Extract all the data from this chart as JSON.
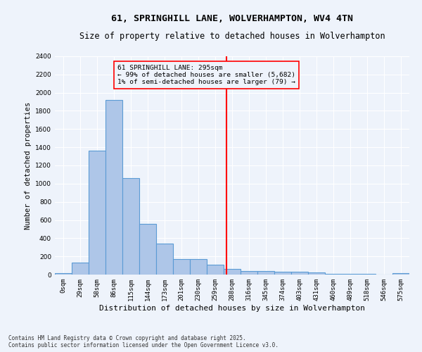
{
  "title_line1": "61, SPRINGHILL LANE, WOLVERHAMPTON, WV4 4TN",
  "title_line2": "Size of property relative to detached houses in Wolverhampton",
  "xlabel": "Distribution of detached houses by size in Wolverhampton",
  "ylabel": "Number of detached properties",
  "footer": "Contains HM Land Registry data © Crown copyright and database right 2025.\nContains public sector information licensed under the Open Government Licence v3.0.",
  "annotation_title": "61 SPRINGHILL LANE: 295sqm",
  "annotation_line1": "← 99% of detached houses are smaller (5,682)",
  "annotation_line2": "1% of semi-detached houses are larger (79) →",
  "bar_color": "#aec6e8",
  "bar_edge_color": "#5b9bd5",
  "vline_color": "red",
  "vline_x": 9.67,
  "categories": [
    "0sqm",
    "29sqm",
    "58sqm",
    "86sqm",
    "115sqm",
    "144sqm",
    "173sqm",
    "201sqm",
    "230sqm",
    "259sqm",
    "288sqm",
    "316sqm",
    "345sqm",
    "374sqm",
    "403sqm",
    "431sqm",
    "460sqm",
    "489sqm",
    "518sqm",
    "546sqm",
    "575sqm"
  ],
  "values": [
    15,
    130,
    1360,
    1920,
    1060,
    560,
    340,
    170,
    170,
    110,
    65,
    35,
    40,
    30,
    30,
    20,
    5,
    5,
    5,
    2,
    15
  ],
  "ylim": [
    0,
    2400
  ],
  "yticks": [
    0,
    200,
    400,
    600,
    800,
    1000,
    1200,
    1400,
    1600,
    1800,
    2000,
    2200,
    2400
  ],
  "background_color": "#eef3fb",
  "grid_color": "white",
  "title_fontsize": 9.5,
  "subtitle_fontsize": 8.5,
  "tick_fontsize": 6.5,
  "ylabel_fontsize": 7.5,
  "xlabel_fontsize": 8,
  "annotation_fontsize": 6.8,
  "footer_fontsize": 5.5
}
